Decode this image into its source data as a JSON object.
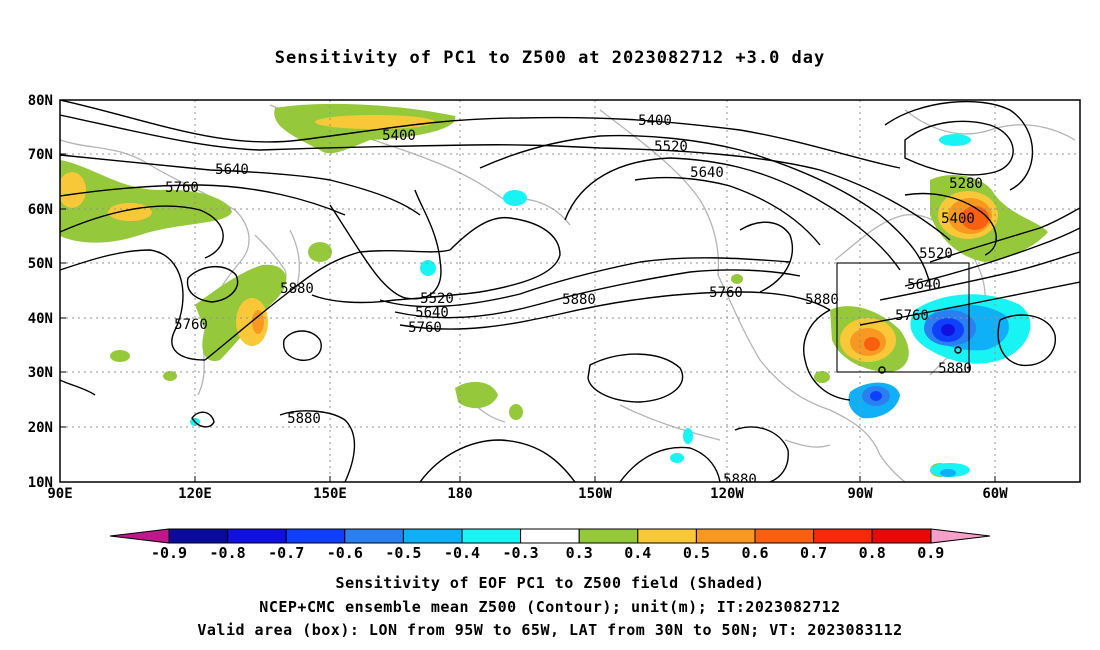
{
  "title": "Sensitivity of PC1 to Z500 at 2023082712 +3.0 day",
  "map": {
    "lat_labels": [
      "80N",
      "70N",
      "60N",
      "50N",
      "40N",
      "30N",
      "20N",
      "10N"
    ],
    "lon_labels": [
      "90E",
      "120E",
      "150E",
      "180",
      "150W",
      "120W",
      "90W",
      "60W"
    ],
    "contour_labels": [
      "5400",
      "5640",
      "5760",
      "5400",
      "5520",
      "5640",
      "5880",
      "5520",
      "5640",
      "5760",
      "5880",
      "5760",
      "5880",
      "5280",
      "5400",
      "5520",
      "5640",
      "5760",
      "5880",
      "5880",
      "5880"
    ],
    "valid_box": {
      "lon_from": "95W",
      "lon_to": "65W",
      "lat_from": "30N",
      "lat_to": "50N"
    }
  },
  "colorbar": {
    "labels": [
      "-0.9",
      "-0.8",
      "-0.7",
      "-0.6",
      "-0.5",
      "-0.4",
      "-0.3",
      "0.3",
      "0.4",
      "0.5",
      "0.6",
      "0.7",
      "0.8",
      "0.9"
    ],
    "colors": [
      "#0a0a9c",
      "#1010e0",
      "#1040ff",
      "#2a80f0",
      "#10b0f8",
      "#18f4f4",
      "#ffffff",
      "#96c83c",
      "#f8c838",
      "#f89820",
      "#f86010",
      "#f82808",
      "#e80808"
    ],
    "low_end_color": "#c0188c",
    "high_end_color": "#f4a0c8"
  },
  "captions": {
    "line1": "Sensitivity of EOF PC1 to Z500 field (Shaded)",
    "line2": "NCEP+CMC ensemble mean Z500 (Contour); unit(m); IT:2023082712",
    "line3": "Valid area (box): LON from 95W to 65W, LAT from 30N to 50N; VT: 2023083112"
  }
}
